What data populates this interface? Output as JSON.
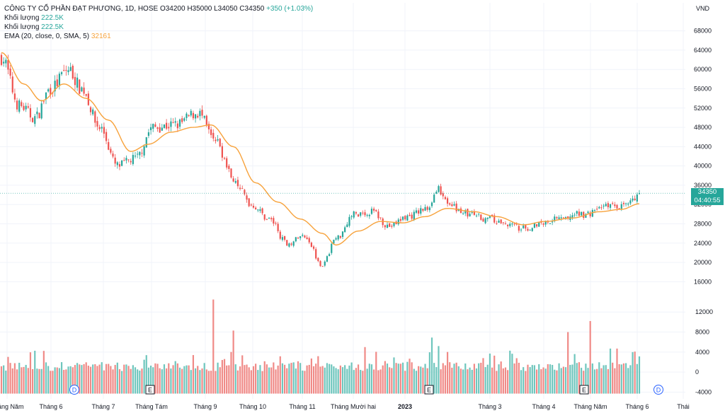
{
  "legend": {
    "symbol_line": "CÔNG TY CỔ PHẦN ĐẠT PHƯƠNG, 1D, HOSE",
    "open": "O34200",
    "high": "H35000",
    "low": "L34050",
    "close": "C34350",
    "change": "+350 (+1.03%)",
    "vol_label_1": "Khối lượng",
    "vol_value_1": "222.5K",
    "vol_label_2": "Khối lượng",
    "vol_value_2": "222.5K",
    "ema_label": "EMA (20, close, 0, SMA, 5)",
    "ema_value": "32161"
  },
  "currency": "VND",
  "last_price": {
    "value": "34350",
    "countdown": "04:40:55"
  },
  "markers": [
    {
      "label": "D",
      "type": "dividend"
    },
    {
      "label": "E",
      "type": "earnings"
    },
    {
      "label": "E",
      "type": "earnings"
    },
    {
      "label": "E",
      "type": "earnings"
    },
    {
      "label": "D",
      "type": "dividend"
    }
  ],
  "colors": {
    "up": "#26a69a",
    "down": "#ef5350",
    "ema": "#f7a23b",
    "up_vol": "#6fc6bd",
    "down_vol": "#f08a87"
  },
  "chart_data": {
    "type": "candlestick",
    "price_ticks": [
      68000,
      64000,
      60000,
      56000,
      52000,
      48000,
      44000,
      40000,
      36000,
      32000,
      28000,
      24000,
      20000,
      16000
    ],
    "volume_ticks": [
      12000,
      8000,
      4000,
      0,
      -4000
    ],
    "x_labels": [
      "Tháng Năm",
      "Tháng 6",
      "Tháng 7",
      "Tháng Tám",
      "Tháng 9",
      "Tháng 10",
      "Tháng 11",
      "Tháng Mười hai",
      "2023",
      "Tháng 3",
      "Tháng 4",
      "Tháng Năm",
      "Tháng 6",
      "Thái"
    ],
    "price_series_anchors": [
      [
        0,
        62500
      ],
      [
        8,
        52500
      ],
      [
        15,
        50000
      ],
      [
        22,
        56000
      ],
      [
        30,
        60000
      ],
      [
        36,
        56000
      ],
      [
        44,
        48000
      ],
      [
        52,
        40000
      ],
      [
        60,
        41500
      ],
      [
        68,
        48000
      ],
      [
        78,
        48500
      ],
      [
        88,
        51000
      ],
      [
        96,
        45000
      ],
      [
        104,
        37500
      ],
      [
        112,
        32000
      ],
      [
        120,
        29000
      ],
      [
        128,
        24000
      ],
      [
        136,
        25500
      ],
      [
        144,
        19500
      ],
      [
        150,
        25000
      ],
      [
        158,
        30000
      ],
      [
        166,
        30500
      ],
      [
        174,
        27500
      ],
      [
        182,
        29500
      ],
      [
        190,
        31000
      ],
      [
        196,
        35000
      ],
      [
        202,
        31500
      ],
      [
        210,
        30000
      ],
      [
        218,
        29000
      ],
      [
        226,
        28000
      ],
      [
        234,
        27000
      ],
      [
        242,
        28200
      ],
      [
        252,
        29800
      ],
      [
        262,
        30000
      ],
      [
        272,
        32000
      ],
      [
        280,
        31500
      ],
      [
        286,
        34350
      ]
    ],
    "ema_anchors": [
      [
        0,
        63500
      ],
      [
        10,
        57000
      ],
      [
        18,
        53500
      ],
      [
        28,
        57000
      ],
      [
        38,
        54000
      ],
      [
        48,
        49500
      ],
      [
        58,
        43000
      ],
      [
        66,
        44500
      ],
      [
        76,
        47000
      ],
      [
        86,
        48000
      ],
      [
        94,
        48500
      ],
      [
        104,
        44000
      ],
      [
        114,
        36500
      ],
      [
        124,
        32500
      ],
      [
        134,
        29000
      ],
      [
        144,
        26000
      ],
      [
        150,
        23600
      ],
      [
        160,
        26500
      ],
      [
        170,
        28500
      ],
      [
        180,
        28200
      ],
      [
        190,
        29500
      ],
      [
        200,
        31200
      ],
      [
        212,
        30500
      ],
      [
        222,
        29500
      ],
      [
        234,
        27800
      ],
      [
        244,
        28500
      ],
      [
        256,
        29200
      ],
      [
        268,
        30500
      ],
      [
        278,
        31000
      ],
      [
        286,
        32161
      ]
    ],
    "volume_spikes": [
      [
        95,
        14500
      ],
      [
        104,
        8300
      ],
      [
        163,
        5000
      ],
      [
        193,
        6900
      ],
      [
        196,
        5200
      ],
      [
        254,
        8000
      ],
      [
        264,
        10200
      ],
      [
        273,
        4700
      ],
      [
        276,
        4700
      ],
      [
        283,
        4000
      ],
      [
        284,
        4100
      ]
    ],
    "count": 287,
    "ylim": [
      14000,
      70000
    ],
    "vol_ylim": [
      -4500,
      15000
    ],
    "grid": true
  }
}
